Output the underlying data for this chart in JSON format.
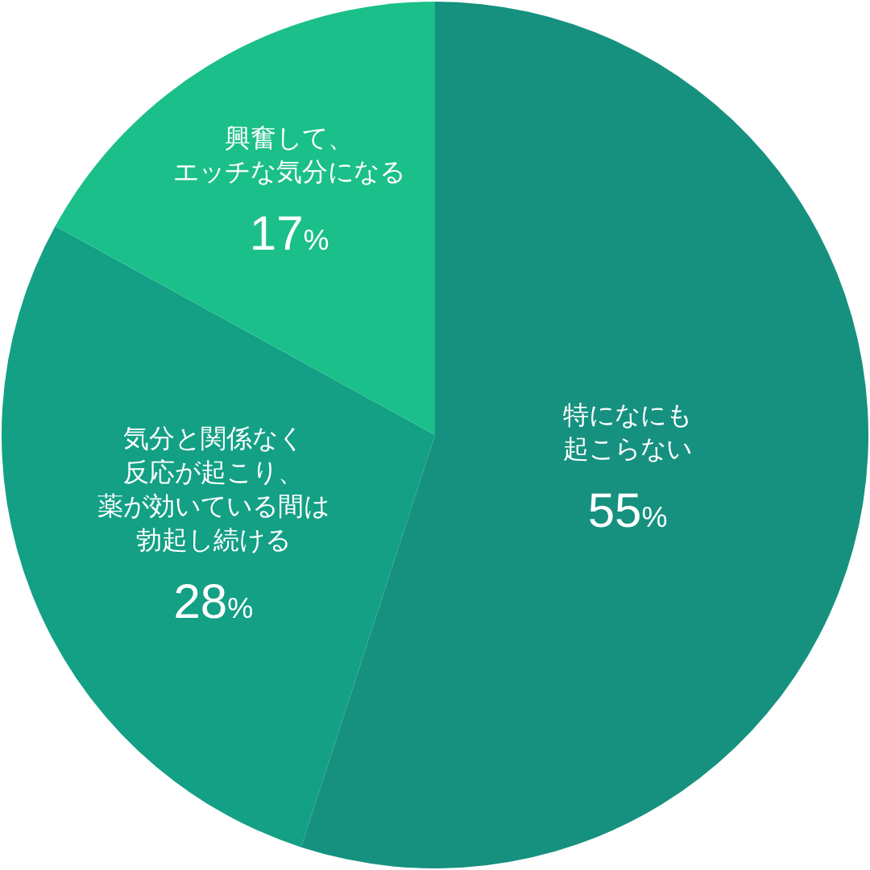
{
  "chart_data": {
    "type": "pie",
    "categories": [
      "特になにも起こらない",
      "気分と関係なく反応が起こり、薬が効いている間は勃起し続ける",
      "興奮して、エッチな気分になる"
    ],
    "values": [
      55,
      28,
      17
    ],
    "colors": [
      "#16917f",
      "#13a085",
      "#1bbf8a"
    ],
    "value_labels": [
      "55%",
      "28%",
      "17%"
    ]
  }
}
